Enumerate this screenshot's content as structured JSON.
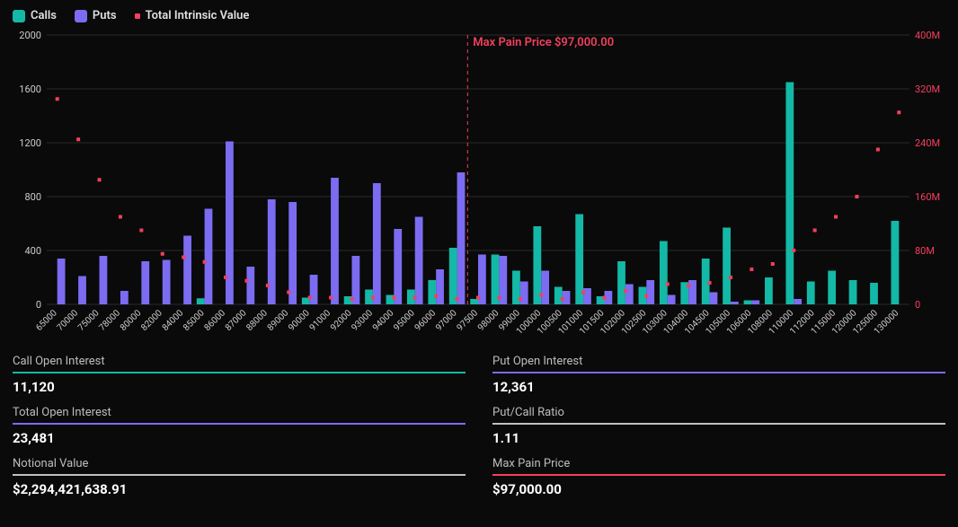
{
  "legend": {
    "calls": {
      "label": "Calls",
      "color": "#14b8a6"
    },
    "puts": {
      "label": "Puts",
      "color": "#7c6cf2"
    },
    "tiv": {
      "label": "Total Intrinsic Value",
      "color": "#f43f5e"
    }
  },
  "chart": {
    "type": "bar+scatter",
    "background": "#0a0a0a",
    "grid_color": "#2a2a2a",
    "bar_group_width": 0.75,
    "left_axis": {
      "label_color": "#cccccc",
      "min": 0,
      "max": 2000,
      "step": 400,
      "ticks": [
        0,
        400,
        800,
        1200,
        1600,
        2000
      ]
    },
    "right_axis": {
      "label_color": "#f43f5e",
      "min": 0,
      "max": 400,
      "step": 80,
      "ticks": [
        "0",
        "80M",
        "160M",
        "240M",
        "320M",
        "400M"
      ]
    },
    "categories": [
      "65000",
      "70000",
      "75000",
      "78000",
      "80000",
      "82000",
      "84000",
      "85000",
      "86000",
      "87000",
      "88000",
      "89000",
      "90000",
      "91000",
      "92000",
      "93000",
      "94000",
      "95000",
      "96000",
      "97000",
      "97500",
      "98000",
      "99000",
      "100000",
      "100500",
      "101000",
      "101500",
      "102000",
      "102500",
      "103000",
      "104000",
      "104500",
      "105000",
      "106000",
      "108000",
      "110000",
      "112000",
      "115000",
      "120000",
      "125000",
      "130000"
    ],
    "calls": [
      0,
      0,
      0,
      0,
      0,
      0,
      0,
      45,
      0,
      0,
      0,
      0,
      50,
      0,
      60,
      110,
      70,
      110,
      180,
      420,
      40,
      370,
      250,
      580,
      130,
      670,
      60,
      320,
      130,
      470,
      165,
      340,
      570,
      30,
      200,
      1650,
      170,
      250,
      180,
      160,
      620
    ],
    "puts": [
      340,
      210,
      360,
      100,
      320,
      330,
      510,
      710,
      1210,
      280,
      780,
      760,
      220,
      940,
      360,
      900,
      560,
      650,
      260,
      980,
      370,
      360,
      170,
      250,
      100,
      120,
      100,
      150,
      180,
      70,
      180,
      90,
      20,
      30,
      0,
      40,
      0,
      0,
      0,
      0,
      0
    ],
    "tiv": [
      305,
      245,
      185,
      130,
      110,
      75,
      70,
      63,
      40,
      35,
      28,
      18,
      10,
      10,
      8,
      10,
      10,
      10,
      12,
      8,
      10,
      10,
      8,
      14,
      8,
      18,
      10,
      20,
      12,
      30,
      28,
      32,
      40,
      52,
      60,
      80,
      110,
      130,
      160,
      230,
      285
    ],
    "calls_color": "#14b8a6",
    "puts_color": "#7c6cf2",
    "tiv_color": "#f43f5e",
    "tiv_marker_size": 4,
    "max_pain": {
      "index": 19,
      "label": "Max Pain Price $97,000.00",
      "color": "#f43f5e"
    }
  },
  "stats": {
    "call_oi": {
      "label": "Call Open Interest",
      "value": "11,120",
      "divider_color": "#14b8a6"
    },
    "put_oi": {
      "label": "Put Open Interest",
      "value": "12,361",
      "divider_color": "#7c6cf2"
    },
    "total_oi": {
      "label": "Total Open Interest",
      "value": "23,481",
      "divider_color": "#7c6cf2"
    },
    "pc_ratio": {
      "label": "Put/Call Ratio",
      "value": "1.11",
      "divider_color": "#c0c0c0"
    },
    "notional": {
      "label": "Notional Value",
      "value": "$2,294,421,638.91",
      "divider_color": "#c0c0c0"
    },
    "max_pain": {
      "label": "Max Pain Price",
      "value": "$97,000.00",
      "divider_color": "#f43f5e"
    }
  }
}
